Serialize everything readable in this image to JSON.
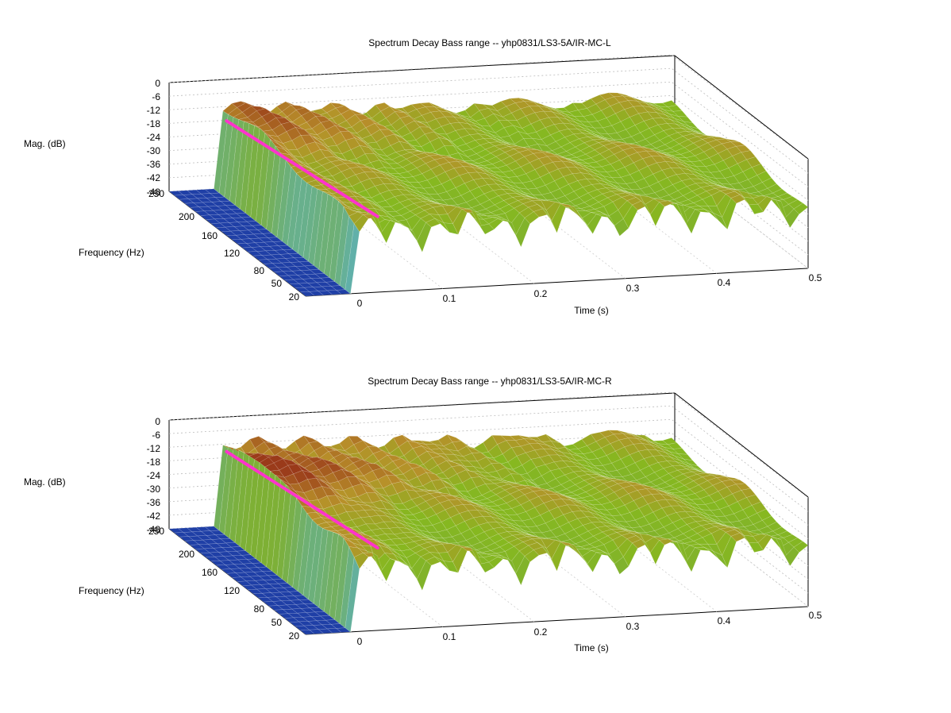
{
  "chart_data": [
    {
      "type": "surface",
      "title": "Spectrum Decay Bass range -- yhp0831/LS3-5A/IR-MC-L",
      "xlabel": "Time (s)",
      "ylabel": "Frequency (Hz)",
      "zlabel": "Mag. (dB)",
      "x_ticks": [
        "0",
        "0.1",
        "0.2",
        "0.3",
        "0.4",
        "0.5"
      ],
      "y_ticks": [
        "20",
        "50",
        "80",
        "120",
        "160",
        "200",
        "250"
      ],
      "z_ticks": [
        "0",
        "-6",
        "-12",
        "-18",
        "-24",
        "-30",
        "-36",
        "-42",
        "-48"
      ],
      "xlim": [
        -0.05,
        0.5
      ],
      "ylim": [
        20,
        250
      ],
      "zlim": [
        -48,
        0
      ],
      "peak_db": -10,
      "floor_db": -20,
      "grid": true,
      "colormap": [
        "#1f3fa6",
        "#3f7fc0",
        "#5fb0b0",
        "#7fb030",
        "#86b820",
        "#b8902a",
        "#9a3a1a"
      ],
      "marker_color": "#ff33cc"
    },
    {
      "type": "surface",
      "title": "Spectrum Decay Bass range -- yhp0831/LS3-5A/IR-MC-R",
      "xlabel": "Time (s)",
      "ylabel": "Frequency (Hz)",
      "zlabel": "Mag. (dB)",
      "x_ticks": [
        "0",
        "0.1",
        "0.2",
        "0.3",
        "0.4",
        "0.5"
      ],
      "y_ticks": [
        "20",
        "50",
        "80",
        "120",
        "160",
        "200",
        "250"
      ],
      "z_ticks": [
        "0",
        "-6",
        "-12",
        "-18",
        "-24",
        "-30",
        "-36",
        "-42",
        "-48"
      ],
      "xlim": [
        -0.05,
        0.5
      ],
      "ylim": [
        20,
        250
      ],
      "zlim": [
        -48,
        0
      ],
      "peak_db": -7,
      "floor_db": -20,
      "grid": true,
      "colormap": [
        "#1f3fa6",
        "#3f7fc0",
        "#5fb0b0",
        "#7fb030",
        "#86b820",
        "#b8902a",
        "#9a3a1a"
      ],
      "marker_color": "#ff33cc"
    }
  ]
}
